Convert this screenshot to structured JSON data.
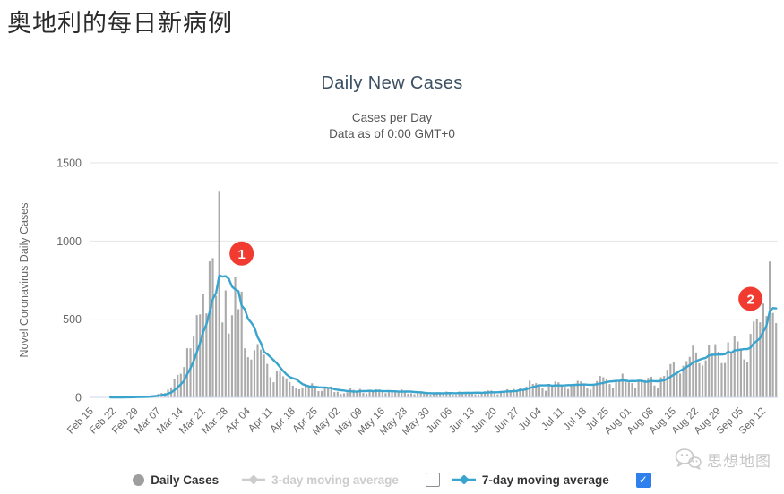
{
  "page": {
    "title": "奥地利的每日新病例"
  },
  "chart": {
    "title": "Daily New Cases",
    "subtitle_line1": "Cases per Day",
    "subtitle_line2": "Data as of 0:00 GMT+0",
    "y_axis_title": "Novel Coronavirus Daily Cases"
  },
  "legend": {
    "items": [
      {
        "label": "Daily Cases",
        "marker": "circle",
        "marker_color": "#9e9e9e",
        "label_color": "#333333",
        "enabled": true,
        "checkbox": null
      },
      {
        "label": "3-day moving average",
        "marker": "diamond-line",
        "marker_color": "#cccccc",
        "label_color": "#cccccc",
        "enabled": false,
        "checkbox": "unchecked"
      },
      {
        "label": "7-day moving average",
        "marker": "diamond-line",
        "marker_color": "#39a4cd",
        "label_color": "#333333",
        "enabled": true,
        "checkbox": "checked"
      }
    ]
  },
  "watermark": {
    "text": "思想地图",
    "icon": "wechat-icon"
  },
  "chart_data": {
    "type": "bar",
    "title": "Daily New Cases",
    "xlabel": "",
    "ylabel": "Novel Coronavirus Daily Cases",
    "ylim": [
      0,
      1500
    ],
    "y_ticks": [
      0,
      500,
      1000,
      1500
    ],
    "grid": "horizontal",
    "legend_position": "bottom",
    "x_start_date": "Feb 15",
    "x_end_date": "Sep 16",
    "x_tick_every_days": 7,
    "x_tick_labels": [
      "Feb 15",
      "Feb 22",
      "Feb 29",
      "Mar 07",
      "Mar 14",
      "Mar 21",
      "Mar 28",
      "Apr 04",
      "Apr 11",
      "Apr 18",
      "Apr 25",
      "May 02",
      "May 09",
      "May 16",
      "May 23",
      "May 30",
      "Jun 06",
      "Jun 13",
      "Jun 20",
      "Jun 27",
      "Jul 04",
      "Jul 11",
      "Jul 18",
      "Jul 25",
      "Aug 01",
      "Aug 08",
      "Aug 15",
      "Aug 22",
      "Aug 29",
      "Sep 05",
      "Sep 12"
    ],
    "series": [
      {
        "name": "Daily Cases",
        "type": "bar",
        "color": "#ababab",
        "values": [
          0,
          0,
          0,
          0,
          0,
          0,
          0,
          0,
          0,
          0,
          2,
          2,
          1,
          2,
          4,
          4,
          4,
          9,
          5,
          14,
          15,
          24,
          28,
          27,
          50,
          64,
          116,
          144,
          151,
          194,
          314,
          314,
          389,
          526,
          531,
          659,
          537,
          870,
          891,
          650,
          1321,
          479,
          684,
          408,
          525,
          771,
          564,
          676,
          314,
          257,
          242,
          302,
          341,
          306,
          273,
          214,
          129,
          97,
          166,
          165,
          135,
          122,
          98,
          75,
          58,
          52,
          59,
          76,
          75,
          90,
          62,
          40,
          41,
          59,
          60,
          70,
          34,
          36,
          22,
          26,
          32,
          58,
          48,
          38,
          54,
          28,
          24,
          45,
          44,
          52,
          50,
          34,
          27,
          33,
          33,
          45,
          35,
          51,
          41,
          24,
          26,
          20,
          37,
          30,
          31,
          26,
          18,
          20,
          26,
          33,
          29,
          37,
          28,
          17,
          16,
          37,
          32,
          35,
          36,
          31,
          20,
          20,
          31,
          39,
          44,
          44,
          32,
          20,
          33,
          42,
          52,
          46,
          54,
          41,
          60,
          43,
          69,
          107,
          86,
          91,
          83,
          59,
          42,
          85,
          73,
          101,
          96,
          73,
          68,
          53,
          85,
          84,
          106,
          102,
          80,
          60,
          50,
          87,
          104,
          137,
          129,
          119,
          85,
          59,
          104,
          110,
          152,
          120,
          96,
          91,
          58,
          113,
          110,
          110,
          125,
          132,
          76,
          57,
          129,
          137,
          177,
          213,
          226,
          155,
          152,
          202,
          232,
          259,
          331,
          287,
          219,
          204,
          237,
          338,
          285,
          340,
          292,
          219,
          220,
          352,
          284,
          391,
          358,
          313,
          243,
          225,
          406,
          485,
          500,
          480,
          600,
          520,
          869,
          540,
          475
        ]
      },
      {
        "name": "7-day moving average",
        "type": "line",
        "color": "#39a4cd",
        "derived": "7-day moving average of Daily Cases"
      },
      {
        "name": "3-day moving average",
        "type": "line",
        "color": "#cccccc",
        "visible": false
      }
    ],
    "annotations": [
      {
        "label": "1",
        "day_index": 47,
        "value": 920,
        "color": "#f13b31"
      },
      {
        "label": "2",
        "day_index": 206,
        "value": 630,
        "color": "#f13b31"
      }
    ],
    "colors": {
      "bar": "#ababab",
      "line": "#39a4cd",
      "annotation": "#f13b31",
      "grid": "#e6e6e6",
      "axis_line": "#ccd6eb",
      "tick_text": "#666666"
    }
  }
}
